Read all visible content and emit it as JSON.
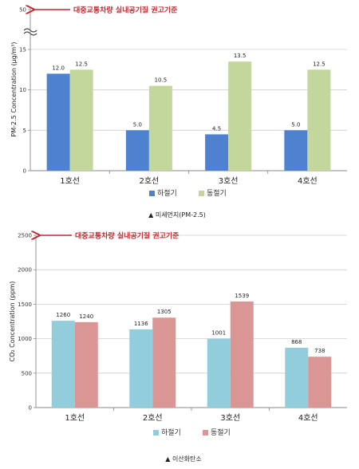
{
  "chart_data": [
    {
      "type": "bar",
      "categories": [
        "1호선",
        "2호선",
        "3호선",
        "4호선"
      ],
      "series": [
        {
          "name": "하절기",
          "color": "#4f81d1",
          "values": [
            12.0,
            5.0,
            4.5,
            5.0
          ],
          "labels": [
            "12.0",
            "5.0",
            "4.5",
            "5.0"
          ]
        },
        {
          "name": "동절기",
          "color": "#c3d69b",
          "values": [
            12.5,
            10.5,
            13.5,
            12.5
          ],
          "labels": [
            "12.5",
            "10.5",
            "13.5",
            "12.5"
          ]
        }
      ],
      "ylabel": "PM-2.5 Concentration (μg/m³)",
      "ylim": [
        0,
        15
      ],
      "yticks": [
        "0",
        "5",
        "10",
        "15"
      ],
      "break_tick": "50",
      "standard_label": "대중교통차량 실내공기질 권고기준",
      "standard_value": 50,
      "grid": true,
      "legend": "bottom",
      "caption": "▲ 미세먼지(PM-2.5)"
    },
    {
      "type": "bar",
      "categories": [
        "1호선",
        "2호선",
        "3호선",
        "4호선"
      ],
      "series": [
        {
          "name": "하절기",
          "color": "#92cddc",
          "values": [
            1260,
            1136,
            1001,
            868
          ],
          "labels": [
            "1260",
            "1136",
            "1001",
            "868"
          ]
        },
        {
          "name": "동절기",
          "color": "#d99694",
          "values": [
            1240,
            1305,
            1539,
            738
          ],
          "labels": [
            "1240",
            "1305",
            "1539",
            "738"
          ]
        }
      ],
      "ylabel": "CO₂ Concentration (ppm)",
      "ylim": [
        0,
        2500
      ],
      "yticks": [
        "0",
        "500",
        "1000",
        "1500",
        "2000",
        "2500"
      ],
      "standard_label": "대중교통차량 실내공기질 권고기준",
      "standard_value": 2500,
      "grid": true,
      "legend": "bottom",
      "caption": "▲ 이산화탄소"
    }
  ]
}
